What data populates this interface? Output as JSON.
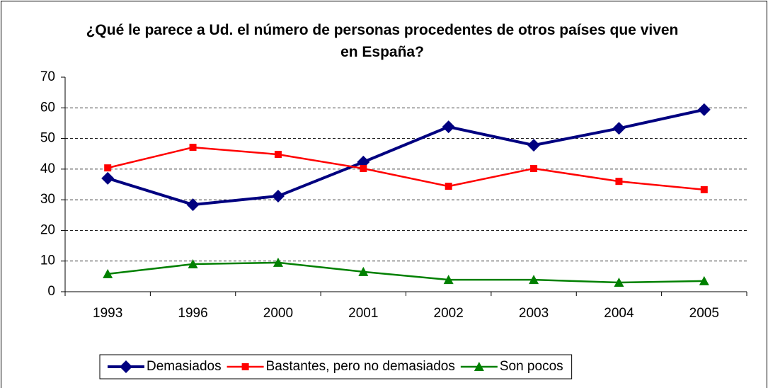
{
  "chart_data": {
    "type": "line",
    "title": "¿Qué le parece a Ud. el número de personas procedentes de otros países que viven en España?",
    "categories": [
      "1993",
      "1996",
      "2000",
      "2001",
      "2002",
      "2003",
      "2004",
      "2005"
    ],
    "series": [
      {
        "name": "Demasiados",
        "color": "#000080",
        "marker": "diamond",
        "values": [
          37,
          28.4,
          31.2,
          42.3,
          53.8,
          47.8,
          53.3,
          59.4
        ]
      },
      {
        "name": "Bastantes, pero no demasiados",
        "color": "#ff0000",
        "marker": "square",
        "values": [
          40.4,
          47.1,
          44.8,
          40.2,
          34.4,
          40.2,
          36,
          33.3
        ]
      },
      {
        "name": "Son pocos",
        "color": "#008000",
        "marker": "triangle",
        "values": [
          5.8,
          9,
          9.5,
          6.5,
          3.9,
          3.9,
          3,
          3.5
        ]
      }
    ],
    "ylim": [
      0,
      70
    ],
    "yticks": [
      0,
      10,
      20,
      30,
      40,
      50,
      60,
      70
    ],
    "grid": true,
    "legend": "bottom"
  }
}
